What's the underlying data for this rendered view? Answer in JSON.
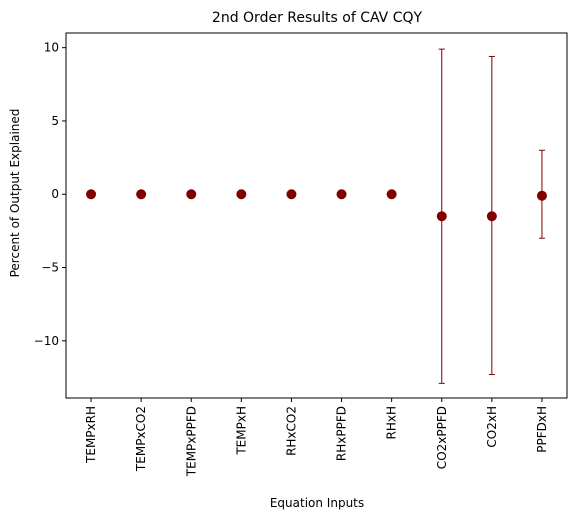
{
  "chart_data": {
    "type": "scatter",
    "title": "2nd Order Results of CAV CQY",
    "xlabel": "Equation Inputs",
    "ylabel": "Percent of Output Explained",
    "categories": [
      "TEMPxRH",
      "TEMPxCO2",
      "TEMPxPPFD",
      "TEMPxH",
      "RHxCO2",
      "RHxPPFD",
      "RHxH",
      "CO2xPPFD",
      "CO2xH",
      "PPFDxH"
    ],
    "values": [
      0,
      0,
      0,
      0,
      0,
      0,
      0,
      -1.5,
      -1.5,
      -0.1
    ],
    "error_low": [
      0,
      0,
      0,
      0,
      0,
      0,
      0,
      -12.9,
      -12.3,
      -3.0
    ],
    "error_high": [
      0,
      0,
      0,
      0,
      0,
      0,
      0,
      9.9,
      9.4,
      3.0
    ],
    "ylim": [
      -13.9,
      11.0
    ],
    "yticks": [
      10,
      5,
      0,
      -5,
      -10
    ],
    "ytick_labels": [
      "10",
      "5",
      "0",
      "−5",
      "−10"
    ],
    "grid": false,
    "marker_color": "#800000",
    "errorbar_color": "#800000"
  }
}
